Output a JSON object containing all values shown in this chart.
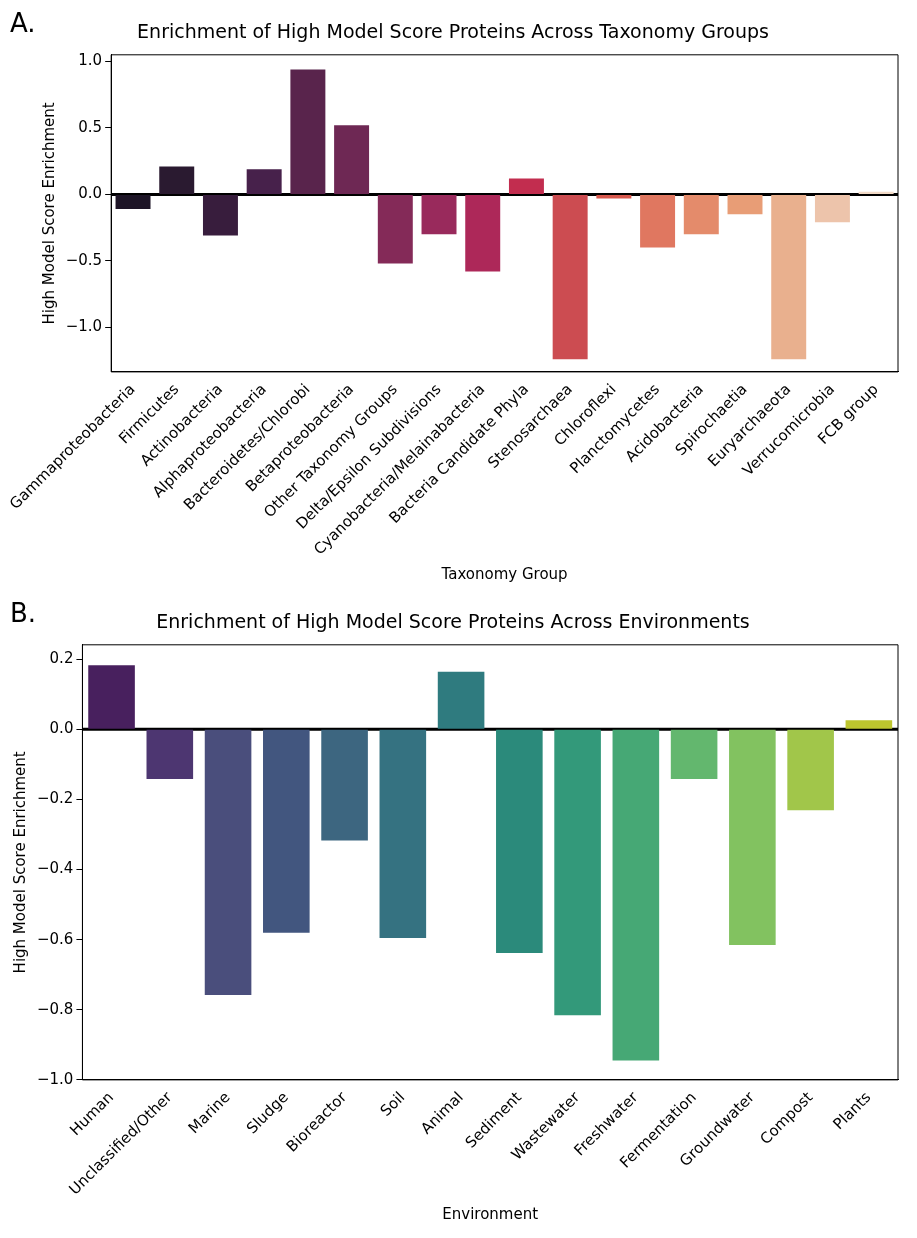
{
  "chart_data": [
    {
      "type": "bar",
      "title": "Enrichment of High Model Score Proteins Across Taxonomy Groups",
      "xlabel": "Taxonomy Group",
      "ylabel": "High Model Score Enrichment",
      "annotations": [
        "A."
      ],
      "categories": [
        "Gammaproteobacteria",
        "Firmicutes",
        "Actinobacteria",
        "Alphaproteobacteria",
        "Bacteroidetes/Chlorobi",
        "Betaproteobacteria",
        "Other Taxonomy Groups",
        "Delta/Epsilon Subdivisions",
        "Cyanobacteria/Melainabacteria",
        "Bacteria Candidate Phyla",
        "Stenosarchaea",
        "Chloroflexi",
        "Planctomycetes",
        "Acidobacteria",
        "Spirochaetia",
        "Euryarchaeota",
        "Verrucomicrobia",
        "FCB group"
      ],
      "values": [
        -0.11,
        0.21,
        -0.31,
        0.19,
        0.94,
        0.52,
        -0.52,
        -0.3,
        -0.58,
        0.12,
        -1.24,
        -0.03,
        -0.4,
        -0.3,
        -0.15,
        -1.24,
        -0.21,
        0.02
      ],
      "colors": [
        "#1d1426",
        "#2a1a30",
        "#381d3d",
        "#47214b",
        "#59244c",
        "#6e2854",
        "#842a58",
        "#992a5c",
        "#ad2859",
        "#c22d4f",
        "#cc4c51",
        "#d7584d",
        "#e07760",
        "#e48b6b",
        "#e89d76",
        "#e9b08e",
        "#edc4ab",
        "#f2dac7"
      ],
      "ylim": [
        -1.335,
        1.05
      ],
      "yticks": [
        {
          "value": -1.0,
          "label": "−1.0"
        },
        {
          "value": -0.5,
          "label": "−0.5"
        },
        {
          "value": 0.0,
          "label": "0.0"
        },
        {
          "value": 0.5,
          "label": "0.5"
        },
        {
          "value": 1.0,
          "label": "1.0"
        }
      ],
      "ref_lines": [
        {
          "axis": "y",
          "value": 0,
          "color": "#000000"
        }
      ],
      "grid": false
    },
    {
      "type": "bar",
      "title": "Enrichment of High Model Score Proteins Across Environments",
      "xlabel": "Environment",
      "ylabel": "High Model Score Enrichment",
      "annotations": [
        "B."
      ],
      "categories": [
        "Human",
        "Unclassified/Other",
        "Marine",
        "Sludge",
        "Bioreactor",
        "Soil",
        "Animal",
        "Sediment",
        "Wastewater",
        "Freshwater",
        "Fermentation",
        "Groundwater",
        "Compost",
        "Plants"
      ],
      "values": [
        0.183,
        -0.142,
        -0.758,
        -0.58,
        -0.317,
        -0.595,
        0.164,
        -0.638,
        -0.816,
        -0.945,
        -0.142,
        -0.615,
        -0.231,
        0.026
      ],
      "colors": [
        "#48205e",
        "#4d3671",
        "#4a4e7c",
        "#42567f",
        "#3d6680",
        "#357281",
        "#2f7b7f",
        "#2b8a7b",
        "#33997a",
        "#46a875",
        "#63b76e",
        "#82c260",
        "#a1c64a",
        "#bdc52e"
      ],
      "ylim": [
        -1.0,
        0.241
      ],
      "yticks": [
        {
          "value": -1.0,
          "label": "−1.0"
        },
        {
          "value": -0.8,
          "label": "−0.8"
        },
        {
          "value": -0.6,
          "label": "−0.6"
        },
        {
          "value": -0.4,
          "label": "−0.4"
        },
        {
          "value": -0.2,
          "label": "−0.2"
        },
        {
          "value": 0.0,
          "label": "0.0"
        },
        {
          "value": 0.2,
          "label": "0.2"
        }
      ],
      "ref_lines": [
        {
          "axis": "y",
          "value": 0,
          "color": "#000000"
        }
      ],
      "grid": false
    }
  ]
}
